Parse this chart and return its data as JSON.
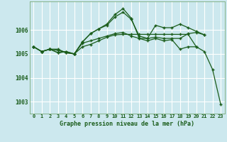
{
  "title": "Graphe pression niveau de la mer (hPa)",
  "bg_color": "#cce8ee",
  "grid_color": "#ffffff",
  "line_color": "#1a5c1a",
  "x_labels": [
    "0",
    "1",
    "2",
    "3",
    "4",
    "5",
    "6",
    "7",
    "8",
    "9",
    "10",
    "11",
    "12",
    "13",
    "14",
    "15",
    "16",
    "17",
    "18",
    "19",
    "20",
    "21",
    "22",
    "23"
  ],
  "ylim": [
    1002.5,
    1007.2
  ],
  "yticks": [
    1003,
    1004,
    1005,
    1006
  ],
  "series": [
    [
      1005.3,
      1005.1,
      1005.2,
      1005.2,
      1005.05,
      1005.0,
      1005.3,
      1005.4,
      1005.55,
      1005.7,
      1005.8,
      1005.82,
      1005.82,
      1005.82,
      1005.82,
      1005.82,
      1005.82,
      1005.82,
      1005.82,
      1005.82,
      1005.3,
      null,
      null,
      null
    ],
    [
      1005.3,
      1005.1,
      1005.2,
      1005.15,
      1005.05,
      1005.0,
      1005.45,
      1005.55,
      1005.65,
      1005.75,
      1005.85,
      1005.9,
      1005.75,
      1005.65,
      1005.65,
      1005.7,
      1005.65,
      1005.65,
      1005.65,
      1005.85,
      1005.9,
      1005.8,
      null,
      null
    ],
    [
      1005.3,
      1005.1,
      1005.2,
      1005.05,
      1005.1,
      1005.0,
      1005.5,
      1005.85,
      1006.05,
      1006.2,
      1006.55,
      1006.75,
      1006.45,
      1005.75,
      1005.65,
      1006.2,
      1006.1,
      1006.1,
      1006.25,
      1006.1,
      1005.95,
      1005.8,
      null,
      null
    ],
    [
      1005.3,
      1005.1,
      1005.2,
      1005.05,
      1005.1,
      1005.0,
      1005.5,
      1005.85,
      1006.05,
      1006.25,
      1006.65,
      1006.9,
      1006.5,
      1005.65,
      1005.55,
      1005.65,
      1005.55,
      1005.6,
      1005.2,
      1005.3,
      1005.3,
      1005.1,
      1004.35,
      1002.9
    ]
  ]
}
